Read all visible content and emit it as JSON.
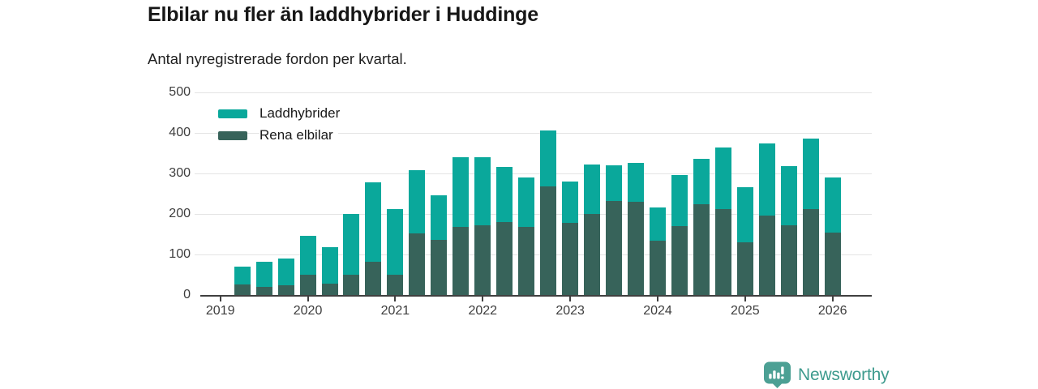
{
  "header": {
    "title": "Elbilar nu fler än laddhybrider i Huddinge",
    "subtitle": "Antal nyregistrerade fordon per kvartal."
  },
  "chart_data": {
    "type": "bar",
    "stacked": true,
    "title": "Elbilar nu fler än laddhybrider i Huddinge",
    "subtitle": "Antal nyregistrerade fordon per kvartal.",
    "xlabel": "",
    "ylabel": "",
    "ylim": [
      0,
      500
    ],
    "y_ticks": [
      0,
      100,
      200,
      300,
      400,
      500
    ],
    "grid": "horizontal",
    "legend_position": "top-left",
    "x_tick_labels": [
      "2019",
      "2020",
      "2021",
      "2022",
      "2023",
      "2024",
      "2025",
      "2026"
    ],
    "quarters": [
      "2019-Q2",
      "2019-Q3",
      "2019-Q4",
      "2020-Q1",
      "2020-Q2",
      "2020-Q3",
      "2020-Q4",
      "2021-Q1",
      "2021-Q2",
      "2021-Q3",
      "2021-Q4",
      "2022-Q1",
      "2022-Q2",
      "2022-Q3",
      "2022-Q4",
      "2023-Q1",
      "2023-Q2",
      "2023-Q3",
      "2023-Q4",
      "2024-Q1",
      "2024-Q2",
      "2024-Q3",
      "2024-Q4",
      "2025-Q1",
      "2025-Q2",
      "2025-Q3",
      "2025-Q4",
      "2026-Q1"
    ],
    "series": [
      {
        "name": "Laddhybrider",
        "color": "#0aa89b",
        "stack": "top",
        "values": [
          43,
          63,
          66,
          96,
          89,
          149,
          195,
          162,
          155,
          110,
          172,
          167,
          135,
          123,
          138,
          101,
          121,
          88,
          96,
          81,
          126,
          112,
          152,
          135,
          179,
          146,
          173,
          135
        ]
      },
      {
        "name": "Rena elbilar",
        "color": "#37635a",
        "stack": "bottom",
        "values": [
          27,
          20,
          25,
          50,
          29,
          51,
          83,
          51,
          153,
          137,
          168,
          173,
          181,
          168,
          268,
          179,
          201,
          233,
          231,
          135,
          171,
          225,
          213,
          131,
          196,
          173,
          213,
          155
        ]
      }
    ]
  },
  "footer": {
    "brand": "Newsworthy",
    "brand_color": "#3e9b8e",
    "logo_icon_color": "#4ca094",
    "logo_icon": "newsworthy-barchart-pin-icon"
  }
}
